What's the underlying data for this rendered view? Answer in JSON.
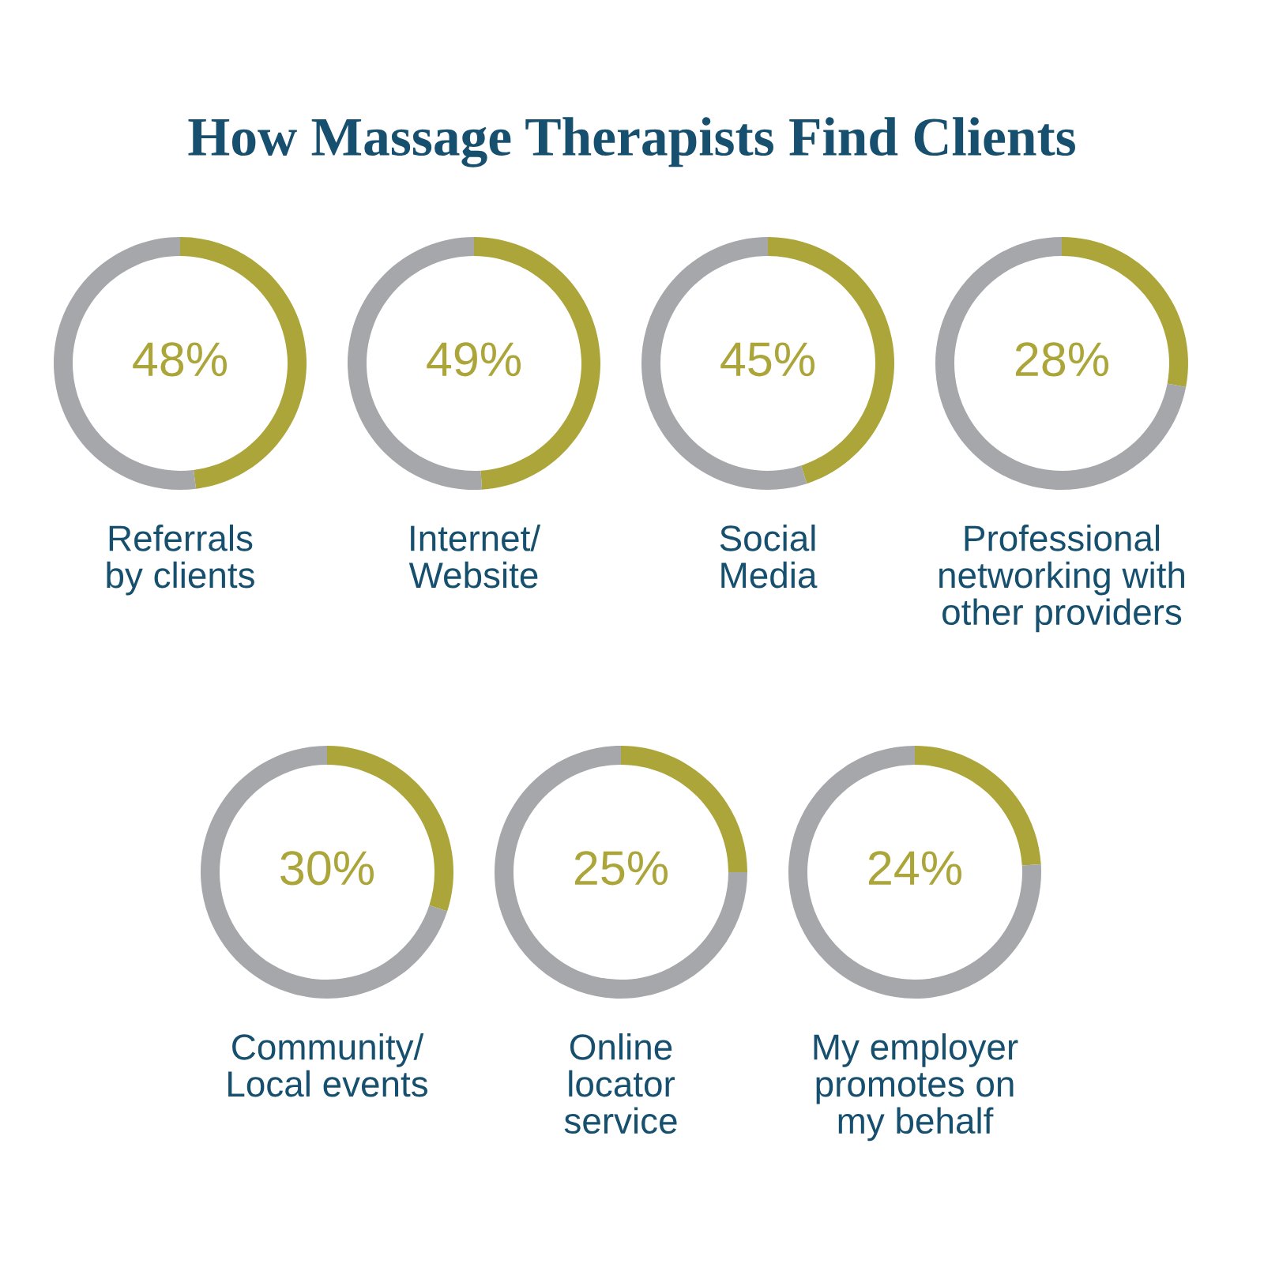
{
  "chart_data": [
    {
      "type": "donut",
      "title": "How Massage Therapists Find Clients",
      "xlabel": "Referrals\nby clients",
      "categories": [
        null,
        null
      ],
      "values": [
        48,
        52
      ],
      "colors": [
        "#aba53a",
        "#a6a7ab"
      ],
      "value_labels": [
        "48%",
        null
      ]
    },
    {
      "type": "donut",
      "xlabel": "Internet/\nWebsite",
      "categories": [
        null,
        null
      ],
      "values": [
        49,
        51
      ],
      "colors": [
        "#aba53a",
        "#a6a7ab"
      ],
      "value_labels": [
        "49%",
        null
      ]
    },
    {
      "type": "donut",
      "xlabel": "Social\nMedia",
      "categories": [
        null,
        null
      ],
      "values": [
        45,
        55
      ],
      "colors": [
        "#aba53a",
        "#a6a7ab"
      ],
      "value_labels": [
        "45%",
        null
      ]
    },
    {
      "type": "donut",
      "xlabel": "Professional\nnetworking with\nother providers",
      "categories": [
        null,
        null
      ],
      "values": [
        28,
        72
      ],
      "colors": [
        "#aba53a",
        "#a6a7ab"
      ],
      "value_labels": [
        "28%",
        null
      ]
    },
    {
      "type": "donut",
      "xlabel": "Community/\nLocal events",
      "categories": [
        null,
        null
      ],
      "values": [
        30,
        70
      ],
      "colors": [
        "#aba53a",
        "#a6a7ab"
      ],
      "value_labels": [
        "30%",
        null
      ]
    },
    {
      "type": "donut",
      "xlabel": "Online\nlocator\nservice",
      "categories": [
        null,
        null
      ],
      "values": [
        25,
        75
      ],
      "colors": [
        "#aba53a",
        "#a6a7ab"
      ],
      "value_labels": [
        "25%",
        null
      ]
    },
    {
      "type": "donut",
      "xlabel": "My employer\npromotes on\nmy behalf",
      "categories": [
        null,
        null
      ],
      "values": [
        24,
        76
      ],
      "colors": [
        "#aba53a",
        "#a6a7ab"
      ],
      "value_labels": [
        "24%",
        null
      ]
    }
  ]
}
